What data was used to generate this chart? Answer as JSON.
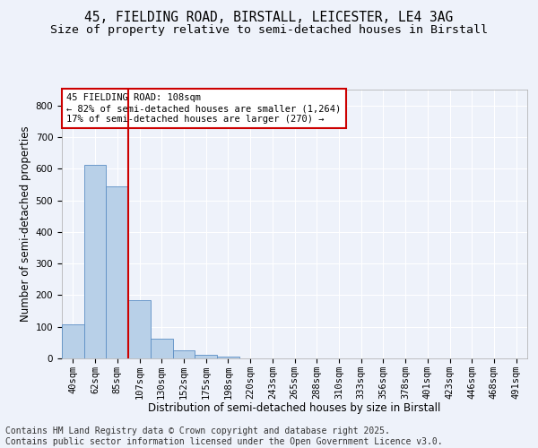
{
  "title_line1": "45, FIELDING ROAD, BIRSTALL, LEICESTER, LE4 3AG",
  "title_line2": "Size of property relative to semi-detached houses in Birstall",
  "xlabel": "Distribution of semi-detached houses by size in Birstall",
  "ylabel": "Number of semi-detached properties",
  "categories": [
    "40sqm",
    "62sqm",
    "85sqm",
    "107sqm",
    "130sqm",
    "152sqm",
    "175sqm",
    "198sqm",
    "220sqm",
    "243sqm",
    "265sqm",
    "288sqm",
    "310sqm",
    "333sqm",
    "356sqm",
    "378sqm",
    "401sqm",
    "423sqm",
    "446sqm",
    "468sqm",
    "491sqm"
  ],
  "values": [
    108,
    611,
    543,
    185,
    62,
    25,
    10,
    5,
    0,
    0,
    0,
    0,
    0,
    0,
    0,
    0,
    0,
    0,
    0,
    0,
    0
  ],
  "bar_color": "#b8d0e8",
  "bar_edge_color": "#5b8ec4",
  "ylim": [
    0,
    850
  ],
  "yticks": [
    0,
    100,
    200,
    300,
    400,
    500,
    600,
    700,
    800
  ],
  "redline_index": 2.5,
  "annotation_line1": "45 FIELDING ROAD: 108sqm",
  "annotation_line2": "← 82% of semi-detached houses are smaller (1,264)",
  "annotation_line3": "17% of semi-detached houses are larger (270) →",
  "annotation_box_color": "#cc0000",
  "footer_line1": "Contains HM Land Registry data © Crown copyright and database right 2025.",
  "footer_line2": "Contains public sector information licensed under the Open Government Licence v3.0.",
  "background_color": "#eef2fa",
  "grid_color": "#ffffff",
  "title_fontsize": 10.5,
  "subtitle_fontsize": 9.5,
  "axis_label_fontsize": 8.5,
  "tick_fontsize": 7.5,
  "annotation_fontsize": 7.5,
  "footer_fontsize": 7.0
}
